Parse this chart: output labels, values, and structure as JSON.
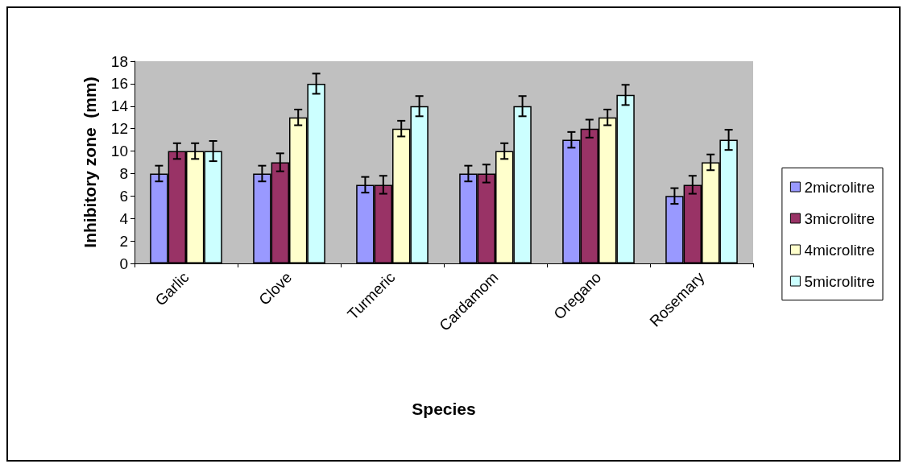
{
  "chart_data": {
    "type": "bar",
    "xlabel": "Species",
    "ylabel": "Inhibitory zone  (mm)",
    "categories": [
      "Garlic",
      "Clove",
      "Turmeric",
      "Cardamom",
      "Oregano",
      "Rosemary"
    ],
    "series": [
      {
        "name": "2microlitre",
        "color": "#9999ff",
        "values": [
          8,
          8,
          7,
          8,
          11,
          6
        ],
        "errors": [
          0.7,
          0.7,
          0.7,
          0.7,
          0.7,
          0.7
        ]
      },
      {
        "name": "3microlitre",
        "color": "#993366",
        "values": [
          10,
          9,
          7,
          8,
          12,
          7
        ],
        "errors": [
          0.7,
          0.8,
          0.8,
          0.8,
          0.8,
          0.8
        ]
      },
      {
        "name": "4microlitre",
        "color": "#ffffcc",
        "values": [
          10,
          13,
          12,
          10,
          13,
          9
        ],
        "errors": [
          0.7,
          0.7,
          0.7,
          0.7,
          0.7,
          0.7
        ]
      },
      {
        "name": "5microlitre",
        "color": "#ccffff",
        "values": [
          10,
          16,
          14,
          14,
          15,
          11
        ],
        "errors": [
          0.9,
          0.9,
          0.9,
          0.9,
          0.9,
          0.9
        ]
      }
    ],
    "ylim": [
      0,
      18
    ],
    "yticks": [
      0,
      2,
      4,
      6,
      8,
      10,
      12,
      14,
      16,
      18
    ],
    "grid": false,
    "legend": "right"
  }
}
